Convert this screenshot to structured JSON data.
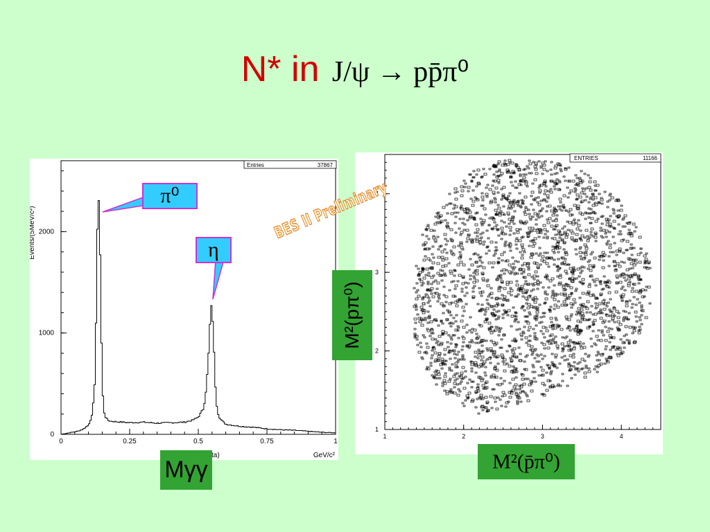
{
  "title": {
    "prefix": "N* in",
    "formula": "J/ψ → pp̄π⁰"
  },
  "watermark": "BES II Preliminary",
  "callouts": {
    "pi0": "π⁰",
    "eta": "η"
  },
  "x_axis_label_hist": "Mγγ",
  "y_axis_label_scatter": "M²(pπ⁰)",
  "x_axis_label_scatter": "M²(p̄π⁰)",
  "chart_data": [
    {
      "type": "line",
      "title": "",
      "xlabel": "GeV/c²",
      "xlabel_partial": "ta)",
      "ylabel": "Events/(5MeV/c²)",
      "stats_box": {
        "label": "Entries",
        "value": "37867"
      },
      "xlim": [
        0,
        1
      ],
      "ylim": [
        0,
        2700
      ],
      "x_ticks": [
        0,
        0.25,
        0.5,
        0.75,
        1
      ],
      "x_tick_labels": [
        "0",
        "0.25",
        "0.5",
        "0.75",
        "1"
      ],
      "y_ticks": [
        0,
        1000,
        2000
      ],
      "y_tick_labels": [
        "0",
        "1000",
        "2000"
      ],
      "series": [
        {
          "x": [
            0,
            0.03,
            0.06,
            0.08,
            0.1,
            0.115,
            0.125,
            0.13,
            0.135,
            0.14,
            0.145,
            0.15,
            0.155,
            0.16,
            0.17,
            0.18,
            0.2,
            0.25,
            0.3,
            0.35,
            0.4,
            0.45,
            0.48,
            0.5,
            0.52,
            0.53,
            0.54,
            0.545,
            0.55,
            0.555,
            0.56,
            0.565,
            0.57,
            0.58,
            0.6,
            0.65,
            0.7,
            0.75,
            0.8,
            0.85,
            0.9,
            0.95,
            1.0
          ],
          "y": [
            0,
            15,
            30,
            50,
            90,
            200,
            600,
            1600,
            2400,
            2250,
            1300,
            500,
            250,
            180,
            140,
            130,
            125,
            115,
            120,
            110,
            115,
            120,
            140,
            170,
            260,
            480,
            900,
            1260,
            1250,
            1000,
            600,
            350,
            220,
            150,
            100,
            80,
            70,
            55,
            45,
            40,
            30,
            20,
            15
          ]
        }
      ]
    },
    {
      "type": "scatter",
      "title": "",
      "xlabel": "",
      "ylabel": "",
      "stats_box": {
        "label": "ENTRIES",
        "value": "11166"
      },
      "xlim": [
        1,
        4.5
      ],
      "ylim": [
        1,
        4.5
      ],
      "x_ticks": [
        1,
        2,
        3,
        4
      ],
      "x_tick_labels": [
        "1",
        "2",
        "3",
        "4"
      ],
      "y_ticks": [
        1,
        2,
        3,
        4
      ],
      "y_tick_labels": [
        "1",
        "2",
        "3",
        "4"
      ],
      "region": {
        "description": "Dalitz-plot boundary, points fill region",
        "boundary_x": [
          2.2,
          2.6,
          3.0,
          3.4,
          3.8,
          4.15,
          4.35,
          4.35,
          4.2,
          3.9,
          3.5,
          3.0,
          2.5,
          2.1,
          1.8,
          1.5,
          1.35,
          1.3,
          1.4,
          1.6,
          1.9,
          2.2
        ],
        "boundary_y": [
          1.2,
          1.3,
          1.45,
          1.6,
          1.8,
          2.1,
          2.5,
          3.1,
          3.6,
          4.0,
          4.3,
          4.45,
          4.45,
          4.3,
          4.0,
          3.6,
          3.1,
          2.6,
          2.0,
          1.6,
          1.35,
          1.2
        ],
        "density": 2400
      }
    }
  ]
}
